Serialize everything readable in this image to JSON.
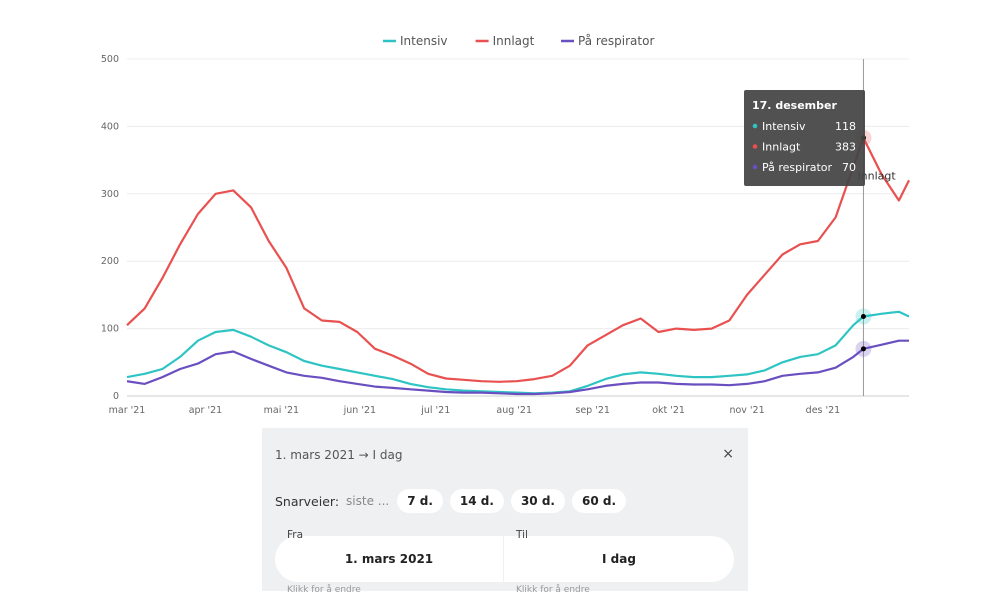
{
  "chart_data": {
    "type": "line",
    "y_ticks": [
      0,
      100,
      200,
      300,
      400,
      500
    ],
    "ylim": [
      0,
      500
    ],
    "x_tick_labels": [
      "mar '21",
      "apr '21",
      "mai '21",
      "jun '21",
      "jul '21",
      "aug '21",
      "sep '21",
      "okt '21",
      "nov '21",
      "des '21"
    ],
    "x_start": "2021-03-01",
    "x_end": "2022-01-04",
    "grid": true,
    "legend_position": "top-center",
    "series": [
      {
        "name": "Intensiv",
        "color": "#2ec4c4",
        "points": [
          [
            "2021-03-01",
            28
          ],
          [
            "2021-03-08",
            33
          ],
          [
            "2021-03-15",
            40
          ],
          [
            "2021-03-22",
            58
          ],
          [
            "2021-03-29",
            82
          ],
          [
            "2021-04-05",
            95
          ],
          [
            "2021-04-12",
            98
          ],
          [
            "2021-04-19",
            88
          ],
          [
            "2021-04-26",
            75
          ],
          [
            "2021-05-03",
            65
          ],
          [
            "2021-05-10",
            52
          ],
          [
            "2021-05-17",
            45
          ],
          [
            "2021-05-24",
            40
          ],
          [
            "2021-05-31",
            35
          ],
          [
            "2021-06-07",
            30
          ],
          [
            "2021-06-14",
            25
          ],
          [
            "2021-06-21",
            18
          ],
          [
            "2021-06-28",
            13
          ],
          [
            "2021-07-05",
            10
          ],
          [
            "2021-07-12",
            8
          ],
          [
            "2021-07-19",
            7
          ],
          [
            "2021-07-26",
            6
          ],
          [
            "2021-08-02",
            5
          ],
          [
            "2021-08-09",
            4
          ],
          [
            "2021-08-16",
            5
          ],
          [
            "2021-08-23",
            7
          ],
          [
            "2021-08-30",
            15
          ],
          [
            "2021-09-06",
            25
          ],
          [
            "2021-09-13",
            32
          ],
          [
            "2021-09-20",
            35
          ],
          [
            "2021-09-27",
            33
          ],
          [
            "2021-10-04",
            30
          ],
          [
            "2021-10-11",
            28
          ],
          [
            "2021-10-18",
            28
          ],
          [
            "2021-10-25",
            30
          ],
          [
            "2021-11-01",
            32
          ],
          [
            "2021-11-08",
            38
          ],
          [
            "2021-11-15",
            50
          ],
          [
            "2021-11-22",
            58
          ],
          [
            "2021-11-29",
            62
          ],
          [
            "2021-12-06",
            75
          ],
          [
            "2021-12-13",
            105
          ],
          [
            "2021-12-17",
            118
          ],
          [
            "2021-12-24",
            122
          ],
          [
            "2021-12-31",
            125
          ],
          [
            "2022-01-04",
            118
          ]
        ]
      },
      {
        "name": "Innlagt",
        "color": "#e8514f",
        "points": [
          [
            "2021-03-01",
            105
          ],
          [
            "2021-03-08",
            130
          ],
          [
            "2021-03-15",
            175
          ],
          [
            "2021-03-22",
            225
          ],
          [
            "2021-03-29",
            270
          ],
          [
            "2021-04-05",
            300
          ],
          [
            "2021-04-12",
            305
          ],
          [
            "2021-04-19",
            280
          ],
          [
            "2021-04-26",
            230
          ],
          [
            "2021-05-03",
            190
          ],
          [
            "2021-05-10",
            130
          ],
          [
            "2021-05-17",
            112
          ],
          [
            "2021-05-24",
            110
          ],
          [
            "2021-05-31",
            95
          ],
          [
            "2021-06-07",
            70
          ],
          [
            "2021-06-14",
            60
          ],
          [
            "2021-06-21",
            48
          ],
          [
            "2021-06-28",
            33
          ],
          [
            "2021-07-05",
            26
          ],
          [
            "2021-07-12",
            24
          ],
          [
            "2021-07-19",
            22
          ],
          [
            "2021-07-26",
            21
          ],
          [
            "2021-08-02",
            22
          ],
          [
            "2021-08-09",
            25
          ],
          [
            "2021-08-16",
            30
          ],
          [
            "2021-08-23",
            45
          ],
          [
            "2021-08-30",
            75
          ],
          [
            "2021-09-06",
            90
          ],
          [
            "2021-09-13",
            105
          ],
          [
            "2021-09-20",
            115
          ],
          [
            "2021-09-27",
            95
          ],
          [
            "2021-10-04",
            100
          ],
          [
            "2021-10-11",
            98
          ],
          [
            "2021-10-18",
            100
          ],
          [
            "2021-10-25",
            112
          ],
          [
            "2021-11-01",
            150
          ],
          [
            "2021-11-08",
            180
          ],
          [
            "2021-11-15",
            210
          ],
          [
            "2021-11-22",
            225
          ],
          [
            "2021-11-29",
            230
          ],
          [
            "2021-12-06",
            265
          ],
          [
            "2021-12-13",
            340
          ],
          [
            "2021-12-17",
            383
          ],
          [
            "2021-12-24",
            330
          ],
          [
            "2021-12-31",
            290
          ],
          [
            "2022-01-04",
            320
          ]
        ]
      },
      {
        "name": "På respirator",
        "color": "#6a4fc0",
        "points": [
          [
            "2021-03-01",
            22
          ],
          [
            "2021-03-08",
            18
          ],
          [
            "2021-03-15",
            28
          ],
          [
            "2021-03-22",
            40
          ],
          [
            "2021-03-29",
            48
          ],
          [
            "2021-04-05",
            62
          ],
          [
            "2021-04-12",
            66
          ],
          [
            "2021-04-19",
            55
          ],
          [
            "2021-04-26",
            45
          ],
          [
            "2021-05-03",
            35
          ],
          [
            "2021-05-10",
            30
          ],
          [
            "2021-05-17",
            27
          ],
          [
            "2021-05-24",
            22
          ],
          [
            "2021-05-31",
            18
          ],
          [
            "2021-06-07",
            14
          ],
          [
            "2021-06-14",
            12
          ],
          [
            "2021-06-21",
            10
          ],
          [
            "2021-06-28",
            8
          ],
          [
            "2021-07-05",
            6
          ],
          [
            "2021-07-12",
            5
          ],
          [
            "2021-07-19",
            5
          ],
          [
            "2021-07-26",
            4
          ],
          [
            "2021-08-02",
            3
          ],
          [
            "2021-08-09",
            3
          ],
          [
            "2021-08-16",
            4
          ],
          [
            "2021-08-23",
            6
          ],
          [
            "2021-08-30",
            10
          ],
          [
            "2021-09-06",
            15
          ],
          [
            "2021-09-13",
            18
          ],
          [
            "2021-09-20",
            20
          ],
          [
            "2021-09-27",
            20
          ],
          [
            "2021-10-04",
            18
          ],
          [
            "2021-10-11",
            17
          ],
          [
            "2021-10-18",
            17
          ],
          [
            "2021-10-25",
            16
          ],
          [
            "2021-11-01",
            18
          ],
          [
            "2021-11-08",
            22
          ],
          [
            "2021-11-15",
            30
          ],
          [
            "2021-11-22",
            33
          ],
          [
            "2021-11-29",
            35
          ],
          [
            "2021-12-06",
            42
          ],
          [
            "2021-12-13",
            58
          ],
          [
            "2021-12-17",
            70
          ],
          [
            "2021-12-24",
            76
          ],
          [
            "2021-12-31",
            82
          ],
          [
            "2022-01-04",
            82
          ]
        ]
      }
    ],
    "crosshair_date": "2021-12-17",
    "end_label": "Innlagt"
  },
  "tooltip": {
    "title": "17. desember",
    "rows": [
      {
        "label": "Intensiv",
        "value": "118",
        "color": "#2ec4c4"
      },
      {
        "label": "Innlagt",
        "value": "383",
        "color": "#e8514f"
      },
      {
        "label": "På respirator",
        "value": "70",
        "color": "#6a4fc0"
      }
    ]
  },
  "panel": {
    "range_text": "1. mars 2021 → I dag",
    "close_glyph": "×",
    "shortcuts_label": "Snarveier:",
    "shortcuts_hint": "siste ...",
    "pills": [
      "7 d.",
      "14 d.",
      "30 d.",
      "60 d."
    ],
    "from_label": "Fra",
    "from_value": "1. mars 2021",
    "to_label": "Til",
    "to_value": "I dag",
    "from_hint": "Klikk for å endre",
    "to_hint": "Klikk for å endre"
  }
}
